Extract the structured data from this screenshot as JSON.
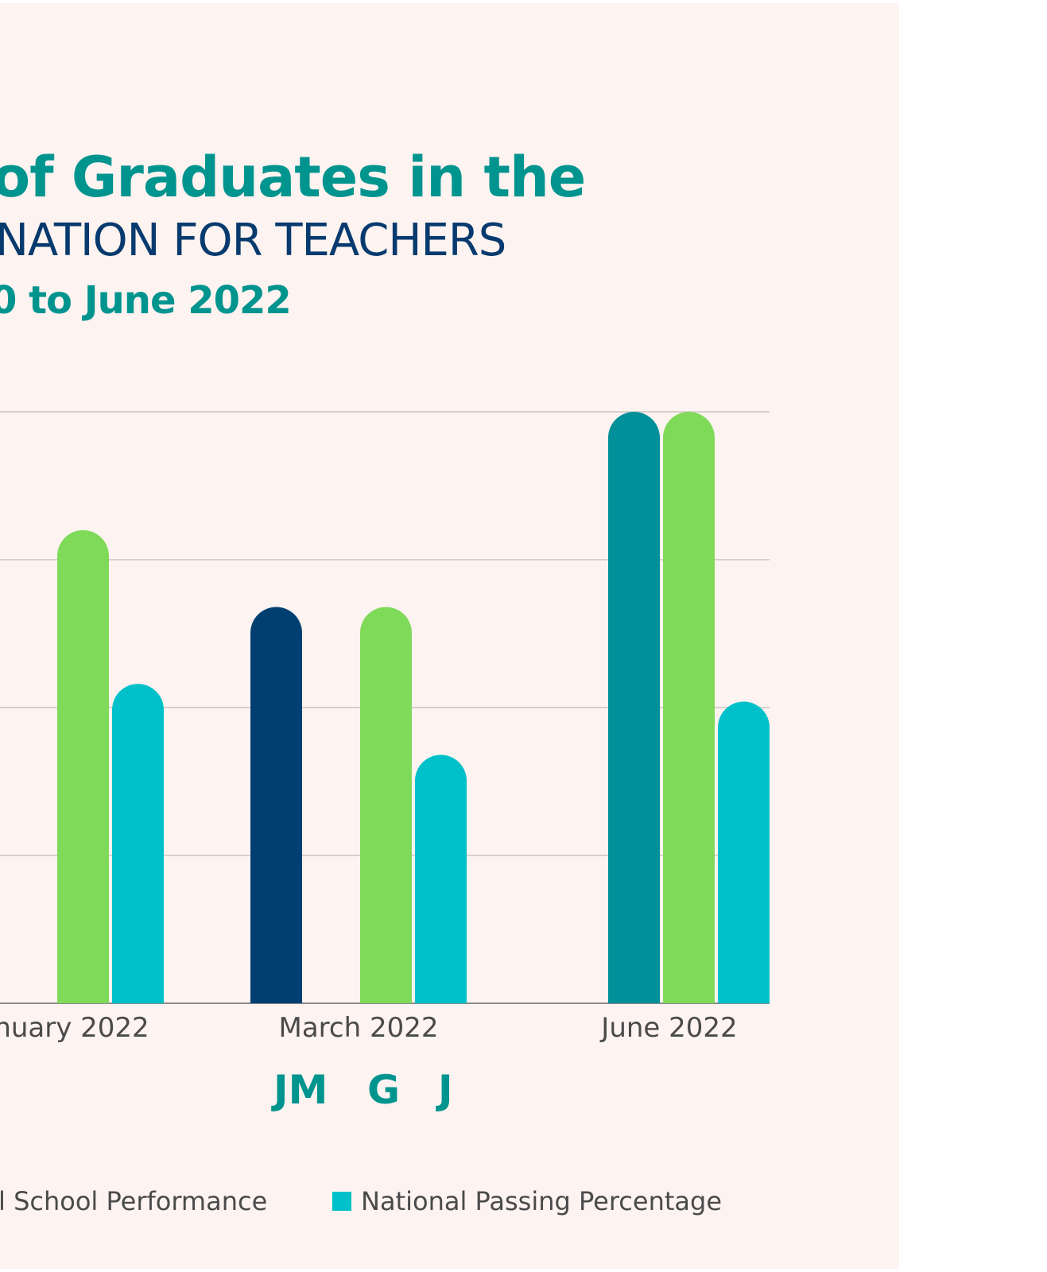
{
  "title_lines": [
    "of Graduates in the",
    "NATION FOR TEACHERS",
    "0 to June 2022"
  ],
  "chart_data": {
    "type": "bar",
    "categories": [
      "nuary 2022",
      "March 2022",
      "June 2022"
    ],
    "ylim": [
      0,
      100
    ],
    "grid": true,
    "series": [
      {
        "name": "",
        "values": [
          null,
          67,
          100
        ]
      },
      {
        "name": "School Performance",
        "values": [
          80,
          67,
          100
        ]
      },
      {
        "name": "National Passing Percentage",
        "values": [
          54,
          42,
          51
        ]
      }
    ],
    "category_series_colors": [
      [
        null,
        "#80da5a",
        "#00c1c9"
      ],
      [
        "#003f70",
        "#80da5a",
        "#00c1c9"
      ],
      [
        "#009099",
        "#80da5a",
        "#00c1c9"
      ]
    ],
    "legend_position": "bottom"
  },
  "markers": [
    "JM",
    "G",
    "J"
  ],
  "legend": [
    {
      "label": "l School Performance",
      "color": "#80da5a"
    },
    {
      "label": "National Passing Percentage",
      "color": "#00c1c9"
    }
  ],
  "colors": {
    "background": "#fdf3f0",
    "title_teal": "#00948f",
    "title_navy": "#073a6e",
    "grid": "#d8d0cd"
  }
}
